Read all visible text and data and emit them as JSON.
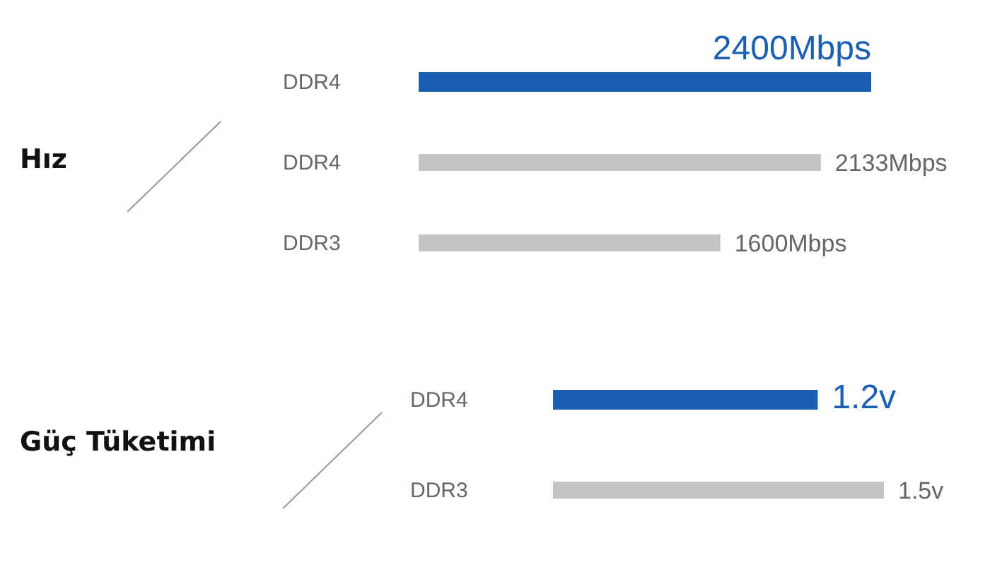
{
  "chart_data": [
    {
      "type": "bar",
      "orientation": "horizontal",
      "ylabel": "Hız",
      "categories": [
        "DDR4",
        "DDR4",
        "DDR3"
      ],
      "values": [
        2400,
        2133,
        1600
      ],
      "colors": [
        "#1a5fb4",
        "#c4c4c4",
        "#c4c4c4"
      ],
      "value_labels": [
        "2400Mbps",
        "2133Mbps",
        "1600Mbps"
      ]
    },
    {
      "type": "bar",
      "orientation": "horizontal",
      "ylabel": "Güç Tüketimi",
      "categories": [
        "DDR4",
        "DDR3"
      ],
      "values": [
        1.2,
        1.5
      ],
      "colors": [
        "#1a5fb4",
        "#c4c4c4"
      ],
      "value_labels": [
        "1.2v",
        "1.5v"
      ]
    }
  ]
}
